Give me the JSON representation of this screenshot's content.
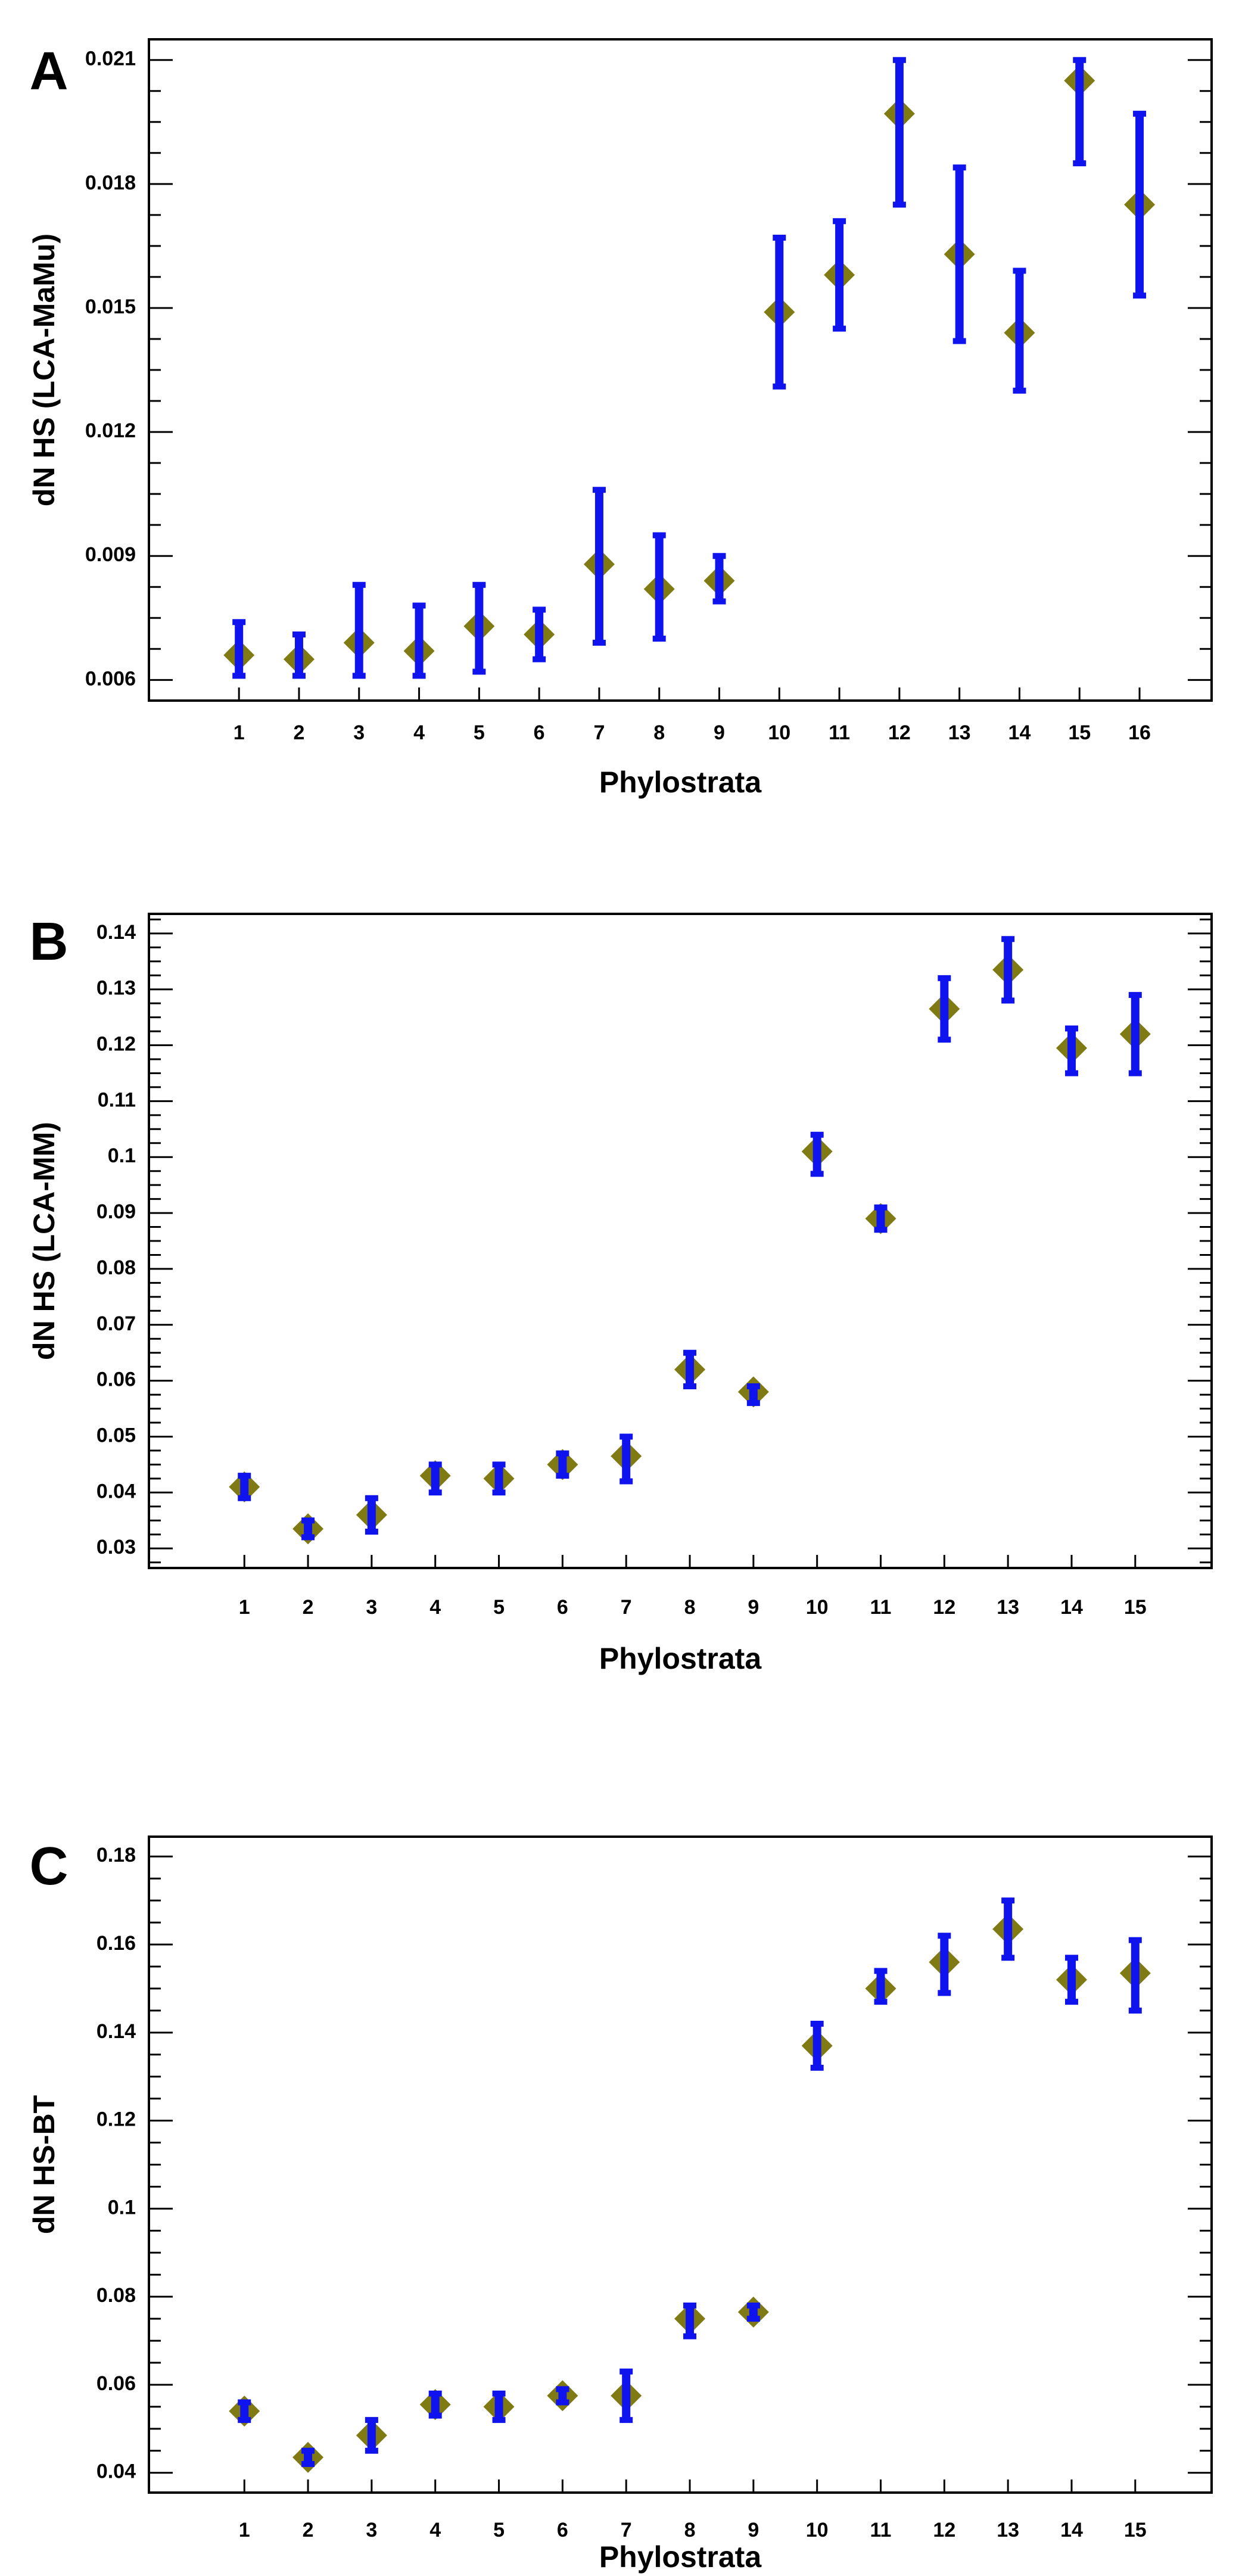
{
  "chart_data": [
    {
      "panel_label": "A",
      "type": "scatter",
      "title": "",
      "xlabel": "Phylostrata",
      "ylabel": "dN HS (LCA-MaMu)",
      "x_ticks": [
        "1",
        "2",
        "3",
        "4",
        "5",
        "6",
        "7",
        "8",
        "9",
        "10",
        "11",
        "12",
        "13",
        "14",
        "15",
        "16"
      ],
      "y_ticks": [
        "0.006",
        "0.009",
        "0.012",
        "0.015",
        "0.018",
        "0.021"
      ],
      "y_tick_values": [
        0.006,
        0.009,
        0.012,
        0.015,
        0.018,
        0.021
      ],
      "xlim": [
        -0.5,
        17.2
      ],
      "ylim": [
        0.0055,
        0.0215
      ],
      "series": [
        {
          "name": "dN HS (LCA-MaMu)",
          "x": [
            1,
            2,
            3,
            4,
            5,
            6,
            7,
            8,
            9,
            10,
            11,
            12,
            13,
            14,
            15,
            16
          ],
          "values": [
            0.0066,
            0.0065,
            0.0069,
            0.0067,
            0.0073,
            0.0071,
            0.0088,
            0.0082,
            0.0084,
            0.0149,
            0.0158,
            0.0197,
            0.0163,
            0.0144,
            0.0205,
            0.0175
          ],
          "lower": [
            0.0061,
            0.0061,
            0.0061,
            0.0061,
            0.0062,
            0.0065,
            0.0069,
            0.007,
            0.0079,
            0.0131,
            0.0145,
            0.0175,
            0.0142,
            0.013,
            0.0185,
            0.0153
          ],
          "upper": [
            0.0074,
            0.0071,
            0.0083,
            0.0078,
            0.0083,
            0.0077,
            0.0106,
            0.0095,
            0.009,
            0.0167,
            0.0171,
            0.021,
            0.0184,
            0.0159,
            0.021,
            0.0197
          ]
        }
      ]
    },
    {
      "panel_label": "B",
      "type": "scatter",
      "title": "",
      "xlabel": "Phylostrata",
      "ylabel": "dN HS (LCA-MM)",
      "x_ticks": [
        "1",
        "2",
        "3",
        "4",
        "5",
        "6",
        "7",
        "8",
        "9",
        "10",
        "11",
        "12",
        "13",
        "14",
        "15"
      ],
      "y_ticks": [
        "0.03",
        "0.04",
        "0.05",
        "0.06",
        "0.07",
        "0.08",
        "0.09",
        "0.1",
        "0.11",
        "0.12",
        "0.13",
        "0.14"
      ],
      "y_tick_values": [
        0.03,
        0.04,
        0.05,
        0.06,
        0.07,
        0.08,
        0.09,
        0.1,
        0.11,
        0.12,
        0.13,
        0.14
      ],
      "xlim": [
        -0.5,
        16.2
      ],
      "ylim": [
        0.0265,
        0.1435
      ],
      "series": [
        {
          "name": "dN HS (LCA-MM)",
          "x": [
            1,
            2,
            3,
            4,
            5,
            6,
            7,
            8,
            9,
            10,
            11,
            12,
            13,
            14,
            15
          ],
          "values": [
            0.041,
            0.0335,
            0.036,
            0.043,
            0.0425,
            0.045,
            0.0465,
            0.062,
            0.058,
            0.101,
            0.089,
            0.1265,
            0.1335,
            0.1195,
            0.122
          ],
          "lower": [
            0.039,
            0.032,
            0.033,
            0.04,
            0.04,
            0.043,
            0.042,
            0.059,
            0.056,
            0.097,
            0.087,
            0.121,
            0.128,
            0.115,
            0.115
          ],
          "upper": [
            0.043,
            0.035,
            0.039,
            0.045,
            0.045,
            0.047,
            0.05,
            0.065,
            0.059,
            0.104,
            0.091,
            0.132,
            0.139,
            0.123,
            0.129
          ]
        }
      ]
    },
    {
      "panel_label": "C",
      "type": "scatter",
      "title": "",
      "xlabel": "Phylostrata",
      "ylabel": "dN HS-BT",
      "x_ticks": [
        "1",
        "2",
        "3",
        "4",
        "5",
        "6",
        "7",
        "8",
        "9",
        "10",
        "11",
        "12",
        "13",
        "14",
        "15"
      ],
      "y_ticks": [
        "0.04",
        "0.06",
        "0.08",
        "0.1",
        "0.12",
        "0.14",
        "0.16",
        "0.18"
      ],
      "y_tick_values": [
        0.04,
        0.06,
        0.08,
        0.1,
        0.12,
        0.14,
        0.16,
        0.18
      ],
      "xlim": [
        -0.5,
        16.2
      ],
      "ylim": [
        0.0355,
        0.1845
      ],
      "series": [
        {
          "name": "dN HS-BT",
          "x": [
            1,
            2,
            3,
            4,
            5,
            6,
            7,
            8,
            9,
            10,
            11,
            12,
            13,
            14,
            15
          ],
          "values": [
            0.054,
            0.0435,
            0.0485,
            0.0555,
            0.055,
            0.0575,
            0.0575,
            0.075,
            0.0765,
            0.137,
            0.15,
            0.156,
            0.1635,
            0.152,
            0.1535
          ],
          "lower": [
            0.052,
            0.042,
            0.045,
            0.053,
            0.052,
            0.056,
            0.052,
            0.071,
            0.075,
            0.132,
            0.147,
            0.149,
            0.157,
            0.147,
            0.145
          ],
          "upper": [
            0.056,
            0.045,
            0.052,
            0.058,
            0.058,
            0.059,
            0.063,
            0.078,
            0.078,
            0.142,
            0.154,
            0.162,
            0.17,
            0.157,
            0.161
          ]
        }
      ]
    }
  ],
  "colors": {
    "error_bar": "#0f14ee",
    "marker": "#7f7a13",
    "axis": "#000000",
    "background": "#ffffff"
  }
}
